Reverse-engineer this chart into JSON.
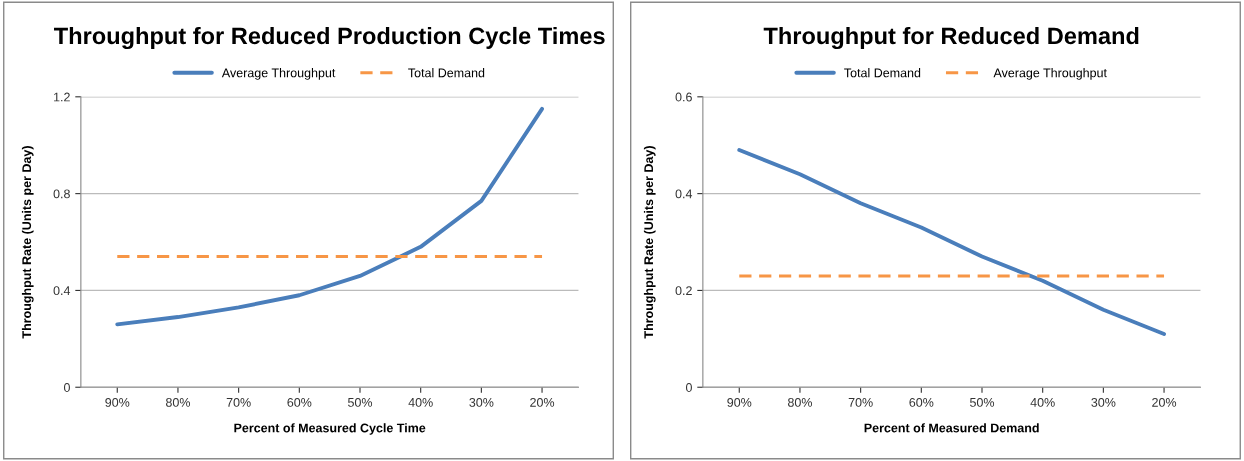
{
  "chart_data": [
    {
      "type": "line",
      "title": "Throughput for Reduced Production Cycle Times",
      "xlabel": "Percent of Measured Cycle Time",
      "ylabel": "Throughput Rate (Units per Day)",
      "categories": [
        "90%",
        "80%",
        "70%",
        "60%",
        "50%",
        "40%",
        "30%",
        "20%"
      ],
      "series": [
        {
          "name": "Average Throughput",
          "color": "#4a7ebb",
          "line_style": "solid",
          "values": [
            0.26,
            0.29,
            0.33,
            0.38,
            0.46,
            0.58,
            0.77,
            1.15
          ]
        },
        {
          "name": "Total Demand",
          "color": "#f79646",
          "line_style": "dashed",
          "values": [
            0.54,
            0.54,
            0.54,
            0.54,
            0.54,
            0.54,
            0.54,
            0.54
          ]
        }
      ],
      "ylim": [
        0,
        1.2
      ],
      "yticks": [
        {
          "value": 0,
          "label": "0"
        },
        0.4,
        0.8,
        1.2
      ],
      "grid": "y",
      "legend": "top",
      "marker": "none"
    },
    {
      "type": "line",
      "title": "Throughput for Reduced Demand",
      "xlabel": "Percent of Measured Demand",
      "ylabel": "Throughput Rate (Units per Day)",
      "categories": [
        "90%",
        "80%",
        "70%",
        "60%",
        "50%",
        "40%",
        "30%",
        "20%"
      ],
      "series": [
        {
          "name": "Total Demand",
          "color": "#4a7ebb",
          "line_style": "solid",
          "values": [
            0.49,
            0.44,
            0.38,
            0.33,
            0.27,
            0.22,
            0.16,
            0.11
          ]
        },
        {
          "name": "Average Throughput",
          "color": "#f79646",
          "line_style": "dashed",
          "values": [
            0.23,
            0.23,
            0.23,
            0.23,
            0.23,
            0.23,
            0.23,
            0.23
          ]
        }
      ],
      "ylim": [
        0,
        0.6
      ],
      "yticks": [
        {
          "value": 0,
          "label": "0"
        },
        0.2,
        0.4,
        0.6
      ],
      "grid": "y",
      "legend": "top",
      "marker": "none"
    }
  ]
}
